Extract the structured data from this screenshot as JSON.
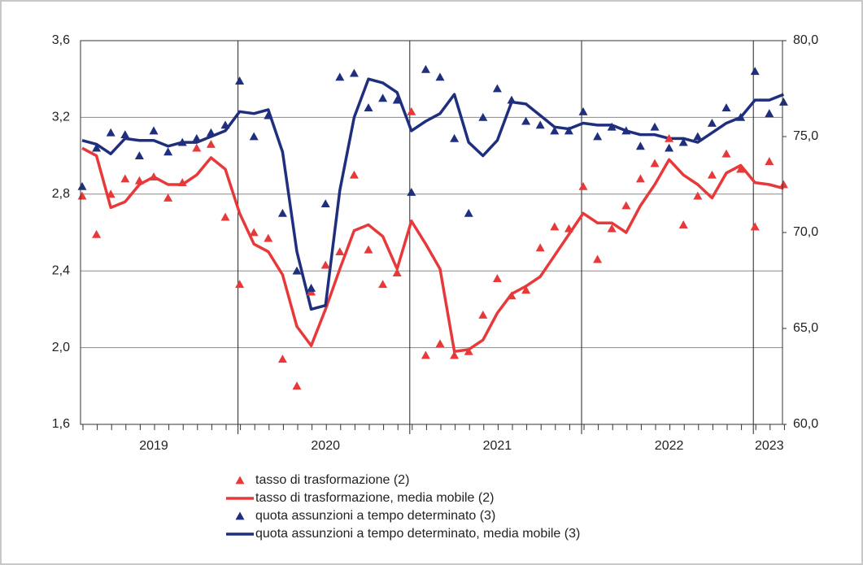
{
  "chart_data": {
    "type": "line",
    "categories": [
      null,
      null,
      null,
      null,
      null,
      "2019",
      null,
      null,
      null,
      null,
      null,
      null,
      null,
      null,
      null,
      null,
      null,
      "2020",
      null,
      null,
      null,
      null,
      null,
      null,
      null,
      null,
      null,
      null,
      null,
      "2021",
      null,
      null,
      null,
      null,
      null,
      null,
      null,
      null,
      null,
      null,
      null,
      "2022",
      null,
      null,
      null,
      null,
      null,
      null,
      "2023",
      null
    ],
    "ylim": [
      1.6,
      3.6
    ],
    "yticks": [
      {
        "value": 1.6,
        "label": "1,6"
      },
      {
        "value": 2.0,
        "label": "2,0"
      },
      {
        "value": 2.4,
        "label": "2,4"
      },
      {
        "value": 2.8,
        "label": "2,8"
      },
      {
        "value": 3.2,
        "label": "3,2"
      },
      {
        "value": 3.6,
        "label": "3,6"
      }
    ],
    "y2lim": [
      60,
      80
    ],
    "y2ticks": [
      {
        "value": 60,
        "label": "60,0"
      },
      {
        "value": 65,
        "label": "65,0"
      },
      {
        "value": 70,
        "label": "70,0"
      },
      {
        "value": 75,
        "label": "75,0"
      },
      {
        "value": 80,
        "label": "80,0"
      }
    ],
    "grid": true,
    "series": [
      {
        "name": "tasso di trasformazione (2)",
        "color": "#e8393a",
        "marker": "triangle",
        "values": [
          2.79,
          2.59,
          2.8,
          2.88,
          2.87,
          2.89,
          2.78,
          2.86,
          3.04,
          3.06,
          2.68,
          2.33,
          2.6,
          2.57,
          1.94,
          1.8,
          2.29,
          2.43,
          2.5,
          2.9,
          2.51,
          2.33,
          2.39,
          3.23,
          1.96,
          2.02,
          1.96,
          1.98,
          2.17,
          2.36,
          2.27,
          2.3,
          2.52,
          2.63,
          2.62,
          2.84,
          2.46,
          2.62,
          2.74,
          2.88,
          2.96,
          3.09,
          2.64,
          2.79,
          2.9,
          3.01,
          2.93,
          2.63,
          2.97,
          2.85
        ]
      },
      {
        "name": "tasso di trasformazione, media mobile (2)",
        "color": "#e8393a",
        "marker": "line",
        "values": [
          3.04,
          3.0,
          2.73,
          2.76,
          2.85,
          2.89,
          2.85,
          2.85,
          2.9,
          2.99,
          2.93,
          2.7,
          2.54,
          2.5,
          2.38,
          2.11,
          2.01,
          2.2,
          2.41,
          2.61,
          2.64,
          2.58,
          2.41,
          2.66,
          2.54,
          2.41,
          1.98,
          1.99,
          2.04,
          2.18,
          2.28,
          2.32,
          2.37,
          2.48,
          2.59,
          2.7,
          2.65,
          2.65,
          2.6,
          2.74,
          2.85,
          2.98,
          2.9,
          2.85,
          2.78,
          2.91,
          2.95,
          2.86,
          2.85,
          2.83
        ]
      },
      {
        "name": "quota assunzioni a tempo determinato (3)",
        "color": "#1f2f7d",
        "marker": "triangle",
        "axis": "y2",
        "values": [
          72.4,
          74.4,
          75.2,
          75.1,
          74.0,
          75.3,
          74.2,
          74.7,
          74.9,
          75.2,
          75.6,
          77.9,
          75.0,
          76.1,
          71.0,
          68.0,
          67.1,
          71.5,
          78.1,
          78.3,
          76.5,
          77.0,
          76.9,
          72.1,
          78.5,
          78.1,
          74.9,
          71.0,
          76.0,
          77.5,
          76.9,
          75.8,
          75.6,
          75.3,
          75.3,
          76.3,
          75.0,
          75.5,
          75.3,
          74.5,
          75.5,
          74.4,
          74.7,
          75.0,
          75.7,
          76.5,
          76.0,
          78.4,
          76.2,
          76.8
        ]
      },
      {
        "name": "quota assunzioni a tempo determinato, media mobile (3)",
        "color": "#1f2f7d",
        "marker": "line",
        "axis": "y2",
        "values": [
          74.8,
          74.6,
          74.1,
          74.9,
          74.8,
          74.8,
          74.5,
          74.7,
          74.7,
          75.0,
          75.3,
          76.3,
          76.2,
          76.4,
          74.2,
          69.0,
          66.0,
          66.2,
          72.2,
          76.0,
          78.0,
          77.8,
          77.3,
          75.3,
          75.8,
          76.2,
          77.2,
          74.7,
          74.0,
          74.8,
          76.8,
          76.7,
          76.1,
          75.5,
          75.4,
          75.7,
          75.6,
          75.6,
          75.3,
          75.1,
          75.1,
          74.9,
          74.9,
          74.7,
          75.2,
          75.7,
          76.0,
          76.9,
          76.9,
          77.2
        ]
      }
    ]
  }
}
